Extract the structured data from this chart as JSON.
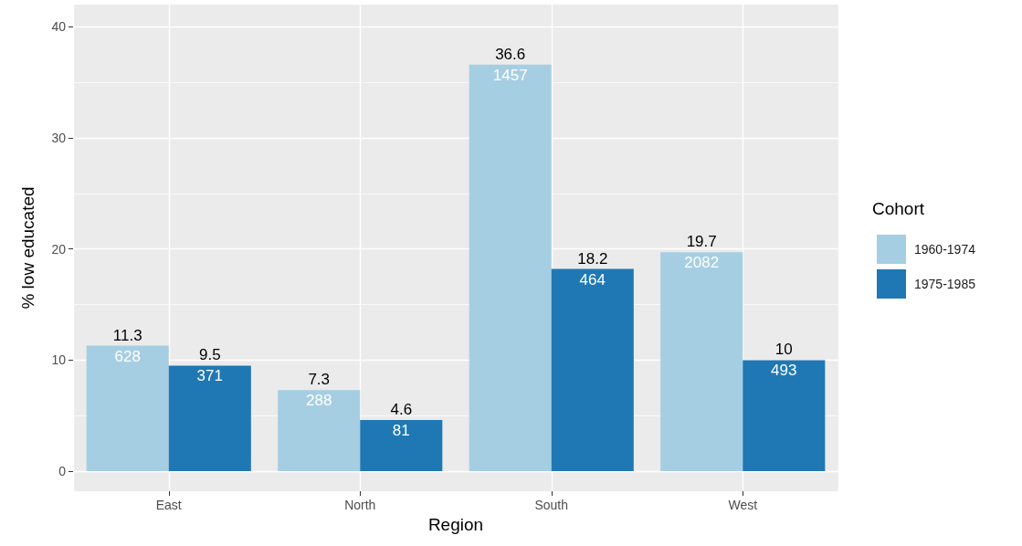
{
  "chart_data": {
    "type": "bar",
    "xlabel": "Region",
    "ylabel": "% low educated",
    "legend_title": "Cohort",
    "categories": [
      "East",
      "North",
      "South",
      "West"
    ],
    "series": [
      {
        "name": "1960-1974",
        "color": "#a6cee3",
        "values": [
          11.3,
          7.3,
          36.6,
          19.7
        ]
      },
      {
        "name": "1975-1985",
        "color": "#1f78b4",
        "values": [
          9.5,
          4.6,
          18.2,
          10
        ]
      }
    ],
    "annotations": [
      {
        "text": "628",
        "x": "East",
        "y": 11.3
      },
      {
        "text": "371",
        "x": "East",
        "y": 9.5
      },
      {
        "text": "288",
        "x": "North",
        "y": 7.3
      },
      {
        "text": "81",
        "x": "North",
        "y": 4.6
      },
      {
        "text": "1457",
        "x": "South",
        "y": 36.6
      },
      {
        "text": "464",
        "x": "South",
        "y": 18.2
      },
      {
        "text": "2082",
        "x": "West",
        "y": 19.7
      },
      {
        "text": "493",
        "x": "West",
        "y": 10
      }
    ],
    "ylim": [
      -1.8,
      42
    ],
    "yticks": [
      0,
      10,
      20,
      30,
      40
    ],
    "grid": true,
    "legend": "right",
    "data_labels": true
  }
}
